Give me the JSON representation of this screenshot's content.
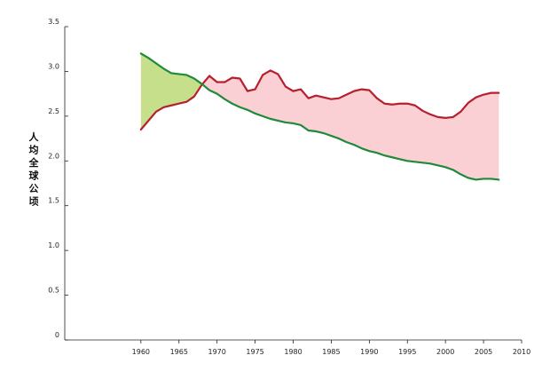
{
  "chart_data": {
    "type": "area",
    "title": "",
    "xlabel": "",
    "ylabel": "人均全球公顷",
    "xlim": [
      1950,
      2010
    ],
    "ylim": [
      0,
      3.5
    ],
    "x_ticks": [
      1960,
      1965,
      1970,
      1975,
      1980,
      1985,
      1990,
      1995,
      2000,
      2005,
      2010
    ],
    "x_tick_labels": [
      "1960",
      "1965",
      "1970",
      "1975",
      "1980",
      "1985",
      "1990",
      "1995",
      "2000",
      "2005",
      "2010"
    ],
    "y_ticks": [
      0,
      0.5,
      1.0,
      1.5,
      2.0,
      2.5,
      3.0,
      3.5
    ],
    "y_tick_labels": [
      "0",
      "0.5",
      "1.0",
      "1.5",
      "2.0",
      "2.5",
      "3.0",
      "3.5"
    ],
    "grid": false,
    "legend": "none",
    "series": [
      {
        "color": "#b81f2e",
        "x": [
          1960,
          1961,
          1962,
          1963,
          1964,
          1965,
          1966,
          1967,
          1968,
          1969,
          1970,
          1971,
          1972,
          1973,
          1974,
          1975,
          1976,
          1977,
          1978,
          1979,
          1980,
          1981,
          1982,
          1983,
          1984,
          1985,
          1986,
          1987,
          1988,
          1989,
          1990,
          1991,
          1992,
          1993,
          1994,
          1995,
          1996,
          1997,
          1998,
          1999,
          2000,
          2001,
          2002,
          2003,
          2004,
          2005,
          2006,
          2007
        ],
        "values": [
          2.35,
          2.45,
          2.55,
          2.6,
          2.62,
          2.64,
          2.66,
          2.72,
          2.85,
          2.95,
          2.88,
          2.88,
          2.93,
          2.92,
          2.78,
          2.8,
          2.96,
          3.01,
          2.97,
          2.83,
          2.78,
          2.8,
          2.7,
          2.73,
          2.71,
          2.69,
          2.7,
          2.74,
          2.78,
          2.8,
          2.79,
          2.7,
          2.64,
          2.63,
          2.64,
          2.64,
          2.62,
          2.56,
          2.52,
          2.49,
          2.48,
          2.49,
          2.55,
          2.65,
          2.71,
          2.74,
          2.76,
          2.76
        ]
      },
      {
        "color": "#1f8a3a",
        "x": [
          1960,
          1961,
          1962,
          1963,
          1964,
          1965,
          1966,
          1967,
          1968,
          1969,
          1970,
          1971,
          1972,
          1973,
          1974,
          1975,
          1976,
          1977,
          1978,
          1979,
          1980,
          1981,
          1982,
          1983,
          1984,
          1985,
          1986,
          1987,
          1988,
          1989,
          1990,
          1991,
          1992,
          1993,
          1994,
          1995,
          1996,
          1997,
          1998,
          1999,
          2000,
          2001,
          2002,
          2003,
          2004,
          2005,
          2006,
          2007
        ],
        "values": [
          3.2,
          3.15,
          3.09,
          3.03,
          2.98,
          2.97,
          2.96,
          2.92,
          2.86,
          2.79,
          2.75,
          2.69,
          2.64,
          2.6,
          2.57,
          2.53,
          2.5,
          2.47,
          2.45,
          2.43,
          2.42,
          2.4,
          2.34,
          2.33,
          2.31,
          2.28,
          2.25,
          2.21,
          2.18,
          2.14,
          2.11,
          2.09,
          2.06,
          2.04,
          2.02,
          2.0,
          1.99,
          1.98,
          1.97,
          1.95,
          1.93,
          1.9,
          1.85,
          1.81,
          1.79,
          1.8,
          1.8,
          1.79
        ]
      }
    ],
    "fill_between": {
      "deficit_color": "#fad0d5",
      "reserve_color": "#c5df8a"
    }
  }
}
